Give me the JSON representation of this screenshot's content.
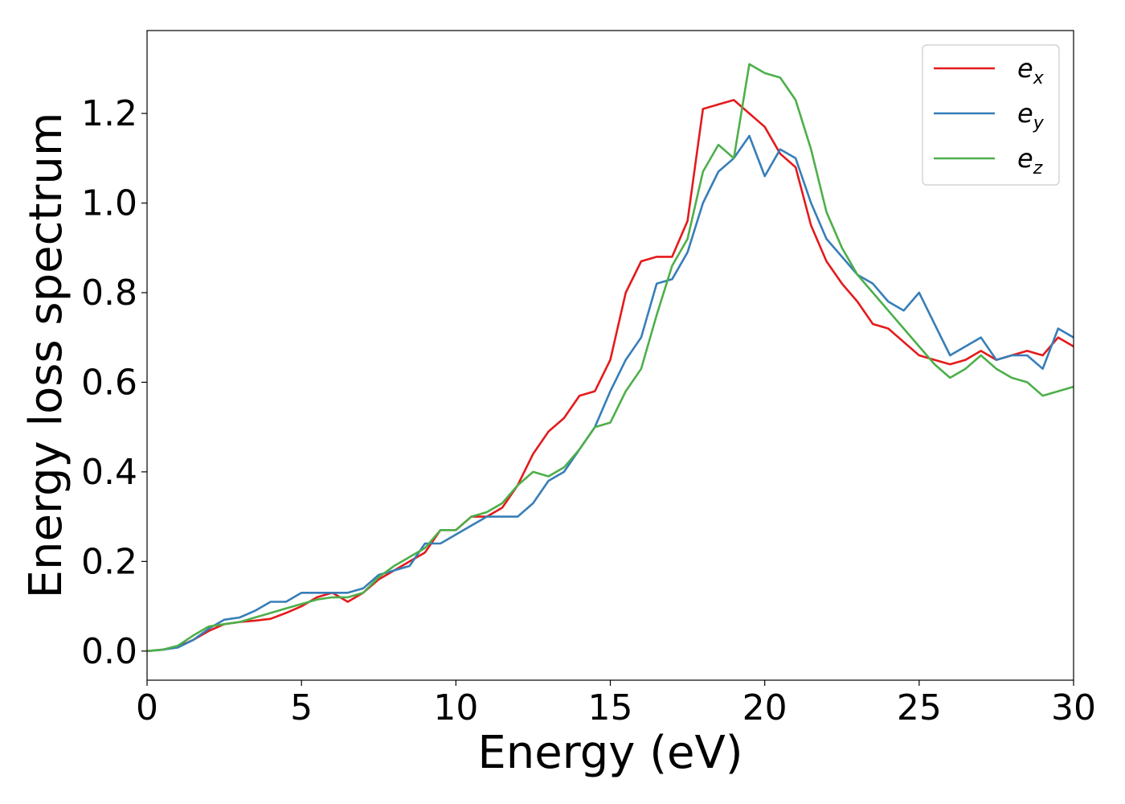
{
  "chart_data": {
    "type": "line",
    "title": "",
    "xlabel": "Energy (eV)",
    "ylabel": "Energy loss spectrum",
    "xlim": [
      0,
      30
    ],
    "ylim": [
      -0.065,
      1.385
    ],
    "xticks": [
      0,
      5,
      10,
      15,
      20,
      25,
      30
    ],
    "yticks": [
      0.0,
      0.2,
      0.4,
      0.6,
      0.8,
      1.0,
      1.2
    ],
    "xtick_labels": [
      "0",
      "5",
      "10",
      "15",
      "20",
      "25",
      "30"
    ],
    "ytick_labels": [
      "0.0",
      "0.2",
      "0.4",
      "0.6",
      "0.8",
      "1.0",
      "1.2"
    ],
    "grid": false,
    "legend_position": "top-right",
    "series": [
      {
        "name": "e_x",
        "color": "#e41a1c",
        "x": [
          0,
          0.5,
          1.0,
          1.5,
          2.0,
          2.5,
          3.0,
          3.5,
          4.0,
          4.5,
          5.0,
          5.5,
          6.0,
          6.5,
          7.0,
          7.5,
          8.0,
          8.5,
          9.0,
          9.5,
          10.0,
          10.5,
          11.0,
          11.5,
          12.0,
          12.5,
          13.0,
          13.5,
          14.0,
          14.5,
          15.0,
          15.5,
          16.0,
          16.5,
          17.0,
          17.5,
          18.0,
          18.5,
          19.0,
          19.5,
          20.0,
          20.5,
          21.0,
          21.5,
          22.0,
          22.5,
          23.0,
          23.5,
          24.0,
          24.5,
          25.0,
          25.5,
          26.0,
          26.5,
          27.0,
          27.5,
          28.0,
          28.5,
          29.0,
          29.5,
          30.0
        ],
        "y": [
          0.0,
          0.003,
          0.01,
          0.025,
          0.045,
          0.06,
          0.065,
          0.068,
          0.072,
          0.085,
          0.1,
          0.12,
          0.13,
          0.11,
          0.13,
          0.16,
          0.18,
          0.2,
          0.22,
          0.27,
          0.27,
          0.3,
          0.3,
          0.32,
          0.37,
          0.44,
          0.49,
          0.52,
          0.57,
          0.58,
          0.65,
          0.8,
          0.87,
          0.88,
          0.88,
          0.96,
          1.21,
          1.22,
          1.23,
          1.2,
          1.17,
          1.11,
          1.08,
          0.95,
          0.87,
          0.82,
          0.78,
          0.73,
          0.72,
          0.69,
          0.66,
          0.65,
          0.64,
          0.65,
          0.67,
          0.65,
          0.66,
          0.67,
          0.66,
          0.7,
          0.68
        ]
      },
      {
        "name": "e_y",
        "color": "#377eb8",
        "x": [
          0,
          0.5,
          1.0,
          1.5,
          2.0,
          2.5,
          3.0,
          3.5,
          4.0,
          4.5,
          5.0,
          5.5,
          6.0,
          6.5,
          7.0,
          7.5,
          8.0,
          8.5,
          9.0,
          9.5,
          10.0,
          10.5,
          11.0,
          11.5,
          12.0,
          12.5,
          13.0,
          13.5,
          14.0,
          14.5,
          15.0,
          15.5,
          16.0,
          16.5,
          17.0,
          17.5,
          18.0,
          18.5,
          19.0,
          19.5,
          20.0,
          20.5,
          21.0,
          21.5,
          22.0,
          22.5,
          23.0,
          23.5,
          24.0,
          24.5,
          25.0,
          25.5,
          26.0,
          26.5,
          27.0,
          27.5,
          28.0,
          28.5,
          29.0,
          29.5,
          30.0
        ],
        "y": [
          0.0,
          0.003,
          0.008,
          0.025,
          0.05,
          0.07,
          0.075,
          0.09,
          0.11,
          0.11,
          0.13,
          0.13,
          0.13,
          0.13,
          0.14,
          0.17,
          0.18,
          0.19,
          0.24,
          0.24,
          0.26,
          0.28,
          0.3,
          0.3,
          0.3,
          0.33,
          0.38,
          0.4,
          0.45,
          0.5,
          0.58,
          0.65,
          0.7,
          0.82,
          0.83,
          0.89,
          1.0,
          1.07,
          1.1,
          1.15,
          1.06,
          1.12,
          1.1,
          1.0,
          0.92,
          0.88,
          0.84,
          0.82,
          0.78,
          0.76,
          0.8,
          0.73,
          0.66,
          0.68,
          0.7,
          0.65,
          0.66,
          0.66,
          0.63,
          0.72,
          0.7
        ]
      },
      {
        "name": "e_z",
        "color": "#4daf4a",
        "x": [
          0,
          0.5,
          1.0,
          1.5,
          2.0,
          2.5,
          3.0,
          3.5,
          4.0,
          4.5,
          5.0,
          5.5,
          6.0,
          6.5,
          7.0,
          7.5,
          8.0,
          8.5,
          9.0,
          9.5,
          10.0,
          10.5,
          11.0,
          11.5,
          12.0,
          12.5,
          13.0,
          13.5,
          14.0,
          14.5,
          15.0,
          15.5,
          16.0,
          16.5,
          17.0,
          17.5,
          18.0,
          18.5,
          19.0,
          19.5,
          20.0,
          20.5,
          21.0,
          21.5,
          22.0,
          22.5,
          23.0,
          23.5,
          24.0,
          24.5,
          25.0,
          25.5,
          26.0,
          26.5,
          27.0,
          27.5,
          28.0,
          28.5,
          29.0,
          29.5,
          30.0
        ],
        "y": [
          0.0,
          0.003,
          0.012,
          0.035,
          0.055,
          0.06,
          0.065,
          0.075,
          0.085,
          0.095,
          0.105,
          0.115,
          0.12,
          0.12,
          0.13,
          0.165,
          0.19,
          0.21,
          0.23,
          0.27,
          0.27,
          0.3,
          0.31,
          0.33,
          0.37,
          0.4,
          0.39,
          0.41,
          0.45,
          0.5,
          0.51,
          0.58,
          0.63,
          0.75,
          0.86,
          0.92,
          1.07,
          1.13,
          1.1,
          1.31,
          1.29,
          1.28,
          1.23,
          1.12,
          0.98,
          0.9,
          0.84,
          0.8,
          0.76,
          0.72,
          0.68,
          0.64,
          0.61,
          0.63,
          0.66,
          0.63,
          0.61,
          0.6,
          0.57,
          0.58,
          0.59
        ]
      }
    ]
  }
}
